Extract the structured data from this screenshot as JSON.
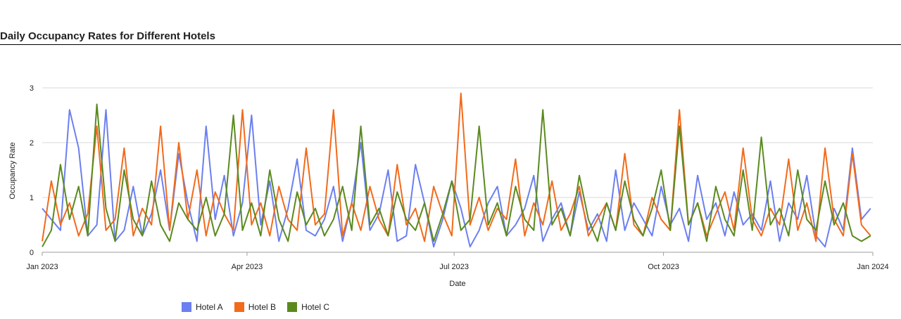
{
  "page": {
    "title": "Daily Occupancy Rates for Different Hotels"
  },
  "chart_data": {
    "type": "line",
    "title": "Daily Occupancy Rates for Different Hotels",
    "xlabel": "Date",
    "ylabel": "Occupancy Rate",
    "x_range": [
      "2023-01-01",
      "2024-01-01"
    ],
    "ylim": [
      0,
      3
    ],
    "y_ticks": [
      0,
      1,
      2,
      3
    ],
    "x_ticks": [
      {
        "date": "2023-01-01",
        "label": "Jan 2023"
      },
      {
        "date": "2023-04-01",
        "label": "Apr 2023"
      },
      {
        "date": "2023-07-01",
        "label": "Jul 2023"
      },
      {
        "date": "2023-10-01",
        "label": "Oct 2023"
      },
      {
        "date": "2024-01-01",
        "label": "Jan 2024"
      }
    ],
    "grid": true,
    "legend_position": "bottom-left",
    "x": [
      "2023-01-01",
      "2023-01-05",
      "2023-01-09",
      "2023-01-13",
      "2023-01-17",
      "2023-01-21",
      "2023-01-25",
      "2023-01-29",
      "2023-02-02",
      "2023-02-06",
      "2023-02-10",
      "2023-02-14",
      "2023-02-18",
      "2023-02-22",
      "2023-02-26",
      "2023-03-02",
      "2023-03-06",
      "2023-03-10",
      "2023-03-14",
      "2023-03-18",
      "2023-03-22",
      "2023-03-26",
      "2023-03-30",
      "2023-04-03",
      "2023-04-07",
      "2023-04-11",
      "2023-04-15",
      "2023-04-19",
      "2023-04-23",
      "2023-04-27",
      "2023-05-01",
      "2023-05-05",
      "2023-05-09",
      "2023-05-13",
      "2023-05-17",
      "2023-05-21",
      "2023-05-25",
      "2023-05-29",
      "2023-06-02",
      "2023-06-06",
      "2023-06-10",
      "2023-06-14",
      "2023-06-18",
      "2023-06-22",
      "2023-06-26",
      "2023-06-30",
      "2023-07-04",
      "2023-07-08",
      "2023-07-12",
      "2023-07-16",
      "2023-07-20",
      "2023-07-24",
      "2023-07-28",
      "2023-08-01",
      "2023-08-05",
      "2023-08-09",
      "2023-08-13",
      "2023-08-17",
      "2023-08-21",
      "2023-08-25",
      "2023-08-29",
      "2023-09-02",
      "2023-09-06",
      "2023-09-10",
      "2023-09-14",
      "2023-09-18",
      "2023-09-22",
      "2023-09-26",
      "2023-09-30",
      "2023-10-04",
      "2023-10-08",
      "2023-10-12",
      "2023-10-16",
      "2023-10-20",
      "2023-10-24",
      "2023-10-28",
      "2023-11-01",
      "2023-11-05",
      "2023-11-09",
      "2023-11-13",
      "2023-11-17",
      "2023-11-21",
      "2023-11-25",
      "2023-11-29",
      "2023-12-03",
      "2023-12-07",
      "2023-12-11",
      "2023-12-15",
      "2023-12-19",
      "2023-12-23",
      "2023-12-27",
      "2023-12-31"
    ],
    "series": [
      {
        "name": "Hotel A",
        "color": "#6b7ff0",
        "values": [
          0.8,
          0.6,
          0.4,
          2.6,
          1.9,
          0.3,
          0.5,
          2.6,
          0.2,
          0.4,
          1.2,
          0.3,
          0.7,
          1.5,
          0.4,
          1.8,
          0.9,
          0.2,
          2.3,
          0.6,
          1.4,
          0.3,
          0.9,
          2.5,
          0.5,
          1.3,
          0.2,
          0.8,
          1.7,
          0.4,
          0.3,
          0.6,
          1.2,
          0.2,
          0.9,
          2.0,
          0.4,
          0.7,
          1.5,
          0.2,
          0.3,
          1.6,
          0.9,
          0.1,
          0.6,
          1.3,
          0.8,
          0.1,
          0.4,
          0.9,
          1.2,
          0.3,
          0.5,
          0.8,
          1.4,
          0.2,
          0.6,
          0.9,
          0.3,
          1.1,
          0.4,
          0.7,
          0.2,
          1.5,
          0.4,
          0.9,
          0.6,
          0.3,
          1.2,
          0.5,
          0.8,
          0.2,
          1.4,
          0.6,
          0.9,
          0.3,
          1.1,
          0.5,
          0.7,
          0.4,
          1.3,
          0.2,
          0.9,
          0.6,
          1.4,
          0.3,
          0.1,
          0.8,
          0.4,
          1.9,
          0.6,
          0.8
        ]
      },
      {
        "name": "Hotel B",
        "color": "#f26a1b",
        "values": [
          0.2,
          1.3,
          0.5,
          0.9,
          0.3,
          0.7,
          2.3,
          0.4,
          0.6,
          1.9,
          0.3,
          0.8,
          0.5,
          2.3,
          0.4,
          2.0,
          0.6,
          1.5,
          0.3,
          1.1,
          0.7,
          0.4,
          2.6,
          0.5,
          0.9,
          0.3,
          1.2,
          0.6,
          0.4,
          1.9,
          0.5,
          0.7,
          2.6,
          0.3,
          0.9,
          0.4,
          1.2,
          0.6,
          0.3,
          1.6,
          0.5,
          0.8,
          0.2,
          1.2,
          0.7,
          0.3,
          2.9,
          0.5,
          1.0,
          0.4,
          0.8,
          0.6,
          1.7,
          0.3,
          0.9,
          0.5,
          1.3,
          0.4,
          0.7,
          1.2,
          0.3,
          0.6,
          0.9,
          0.4,
          1.8,
          0.5,
          0.3,
          1.0,
          0.6,
          0.4,
          2.6,
          0.5,
          0.9,
          0.3,
          0.7,
          1.1,
          0.4,
          1.9,
          0.6,
          0.3,
          0.8,
          0.5,
          1.7,
          0.4,
          0.9,
          0.2,
          1.9,
          0.6,
          0.3,
          1.8,
          0.5,
          0.3
        ]
      },
      {
        "name": "Hotel C",
        "color": "#5a8a1f",
        "values": [
          0.1,
          0.4,
          1.6,
          0.6,
          1.2,
          0.3,
          2.7,
          0.8,
          0.2,
          1.5,
          0.6,
          0.3,
          1.3,
          0.5,
          0.2,
          0.9,
          0.6,
          0.4,
          1.0,
          0.3,
          0.7,
          2.5,
          0.4,
          0.9,
          0.3,
          1.5,
          0.6,
          0.2,
          1.1,
          0.5,
          0.8,
          0.3,
          0.6,
          1.2,
          0.4,
          2.3,
          0.5,
          0.8,
          0.3,
          1.1,
          0.6,
          0.4,
          0.9,
          0.2,
          0.7,
          1.3,
          0.4,
          0.6,
          2.3,
          0.5,
          0.9,
          0.3,
          1.2,
          0.6,
          0.4,
          2.6,
          0.5,
          0.8,
          0.3,
          1.4,
          0.6,
          0.2,
          0.9,
          0.4,
          1.3,
          0.6,
          0.3,
          0.8,
          1.5,
          0.4,
          2.3,
          0.5,
          0.9,
          0.2,
          1.2,
          0.6,
          0.3,
          1.5,
          0.4,
          2.1,
          0.5,
          0.8,
          0.3,
          1.5,
          0.6,
          0.4,
          1.3,
          0.5,
          0.9,
          0.3,
          0.2,
          0.3
        ]
      }
    ]
  }
}
